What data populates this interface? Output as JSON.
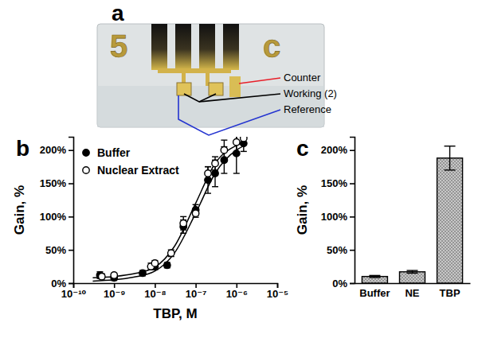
{
  "photo": {
    "label": "a",
    "chip_text": [
      "5",
      "c"
    ],
    "callouts": [
      {
        "text": "Counter",
        "color": "#e8202a"
      },
      {
        "text": "Working (2)",
        "color": "#000000"
      },
      {
        "text": "Reference",
        "color": "#2434d0"
      }
    ]
  },
  "chart_data": [
    {
      "type": "scatter",
      "title": "b",
      "x_label": "TBP, M",
      "y_label": "Gain, %",
      "log": "x",
      "xlim": [
        1e-10,
        1e-05
      ],
      "xticks": [
        {
          "value": 1e-10,
          "label": "10⁻¹⁰"
        },
        {
          "value": 1e-09,
          "label": "10⁻⁹"
        },
        {
          "value": 1e-08,
          "label": "10⁻⁸"
        },
        {
          "value": 1e-07,
          "label": "10⁻⁷"
        },
        {
          "value": 1e-06,
          "label": "10⁻⁶"
        },
        {
          "value": 1e-05,
          "label": "10⁻⁵"
        }
      ],
      "ylim": [
        0,
        220
      ],
      "yticks": [
        {
          "value": 0,
          "label": "0%"
        },
        {
          "value": 50,
          "label": "50%"
        },
        {
          "value": 100,
          "label": "100%"
        },
        {
          "value": 150,
          "label": "150%"
        },
        {
          "value": 200,
          "label": "200%"
        }
      ],
      "legend": "upper left",
      "series": [
        {
          "name": "Buffer",
          "color": "#000000",
          "marker": "circle",
          "x": [
            4.5e-10,
            1e-09,
            5e-09,
            1e-08,
            2e-08,
            5e-08,
            1e-07,
            2e-07,
            3e-07,
            5e-07,
            1e-06,
            1.5e-06
          ],
          "values": [
            12,
            8,
            15,
            25,
            27,
            85,
            110,
            155,
            165,
            185,
            195,
            210
          ],
          "errors": [
            5,
            4,
            4,
            5,
            4,
            10,
            8,
            20,
            20,
            20,
            30,
            12
          ],
          "fit": {
            "x": [
              3e-10,
              1e-09,
              3e-09,
              1e-08,
              3e-08,
              1e-07,
              3e-07,
              1e-06,
              1.6e-06
            ],
            "values": [
              3,
              5,
              9,
              18,
              45,
              105,
              165,
              200,
              207
            ]
          }
        },
        {
          "name": "Nuclear Extract",
          "color": "#000000",
          "marker": "circle-open",
          "x": [
            5e-10,
            1e-09,
            8e-09,
            1e-08,
            2.5e-08,
            5e-08,
            1e-07,
            2e-07,
            3e-07,
            5e-07,
            1e-06,
            1.5e-06
          ],
          "values": [
            10,
            12,
            25,
            30,
            45,
            90,
            105,
            165,
            180,
            200,
            212,
            218
          ],
          "errors": [
            4,
            3,
            5,
            4,
            5,
            10,
            6,
            10,
            10,
            15,
            15,
            8
          ],
          "fit": {
            "x": [
              3e-10,
              1e-09,
              3e-09,
              1e-08,
              3e-08,
              1e-07,
              3e-07,
              1e-06,
              1.6e-06
            ],
            "values": [
              8,
              10,
              14,
              24,
              55,
              120,
              180,
              207,
              212
            ]
          }
        }
      ]
    },
    {
      "type": "bar",
      "title": "c",
      "y_label": "Gain, %",
      "categories": [
        "Buffer",
        "NE",
        "TBP"
      ],
      "values": [
        10,
        17,
        188
      ],
      "errors": [
        1.5,
        2,
        18
      ],
      "color": "#c8c8c8",
      "ylim": [
        0,
        220
      ],
      "yticks": [
        {
          "value": 0,
          "label": "0%"
        },
        {
          "value": 50,
          "label": "50%"
        },
        {
          "value": 100,
          "label": "100%"
        },
        {
          "value": 150,
          "label": "150%"
        },
        {
          "value": 200,
          "label": "200%"
        }
      ]
    }
  ]
}
